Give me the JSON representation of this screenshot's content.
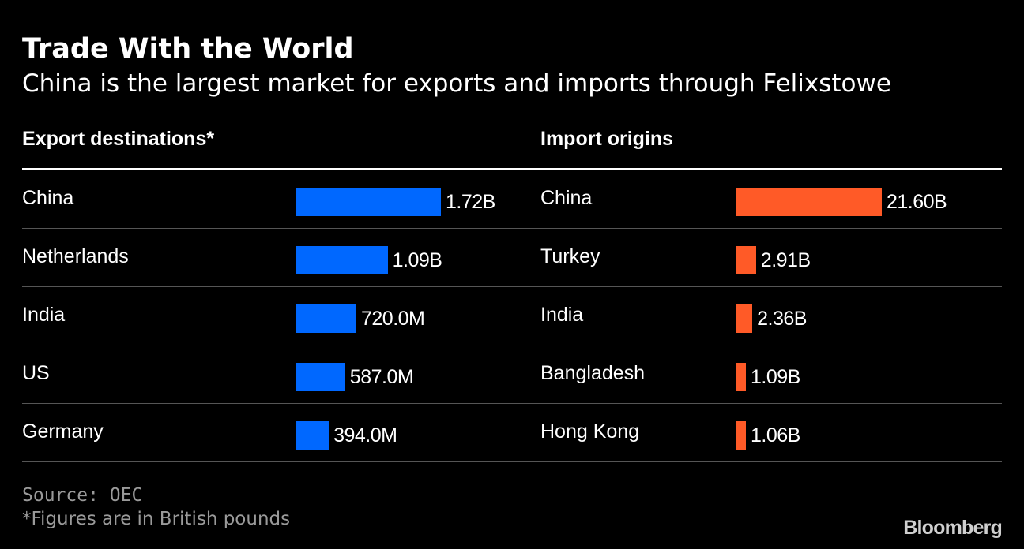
{
  "header": {
    "title": "Trade With the World",
    "subtitle": "China is the largest market for exports and imports through Felixstowe"
  },
  "footer": {
    "source": "Source: OEC",
    "note": "*Figures are in British pounds",
    "brand": "Bloomberg"
  },
  "colors": {
    "export_bar": "#0068ff",
    "import_bar": "#ff5a27",
    "background": "#000000"
  },
  "chart_data": [
    {
      "type": "bar",
      "orientation": "horizontal",
      "header": "Export destinations*",
      "categories": [
        "China",
        "Netherlands",
        "India",
        "US",
        "Germany"
      ],
      "values": [
        1.72,
        1.09,
        0.72,
        0.587,
        0.394
      ],
      "unit": "billion GBP",
      "value_labels": [
        "1.72B",
        "1.09B",
        "720.0M",
        "587.0M",
        "394.0M"
      ],
      "xlim": [
        0,
        1.72
      ]
    },
    {
      "type": "bar",
      "orientation": "horizontal",
      "header": "Import origins",
      "categories": [
        "China",
        "Turkey",
        "India",
        "Bangladesh",
        "Hong Kong"
      ],
      "values": [
        21.6,
        2.91,
        2.36,
        1.09,
        1.06
      ],
      "unit": "billion GBP",
      "value_labels": [
        "21.60B",
        "2.91B",
        "2.36B",
        "1.09B",
        "1.06B"
      ],
      "xlim": [
        0,
        21.6
      ]
    }
  ]
}
